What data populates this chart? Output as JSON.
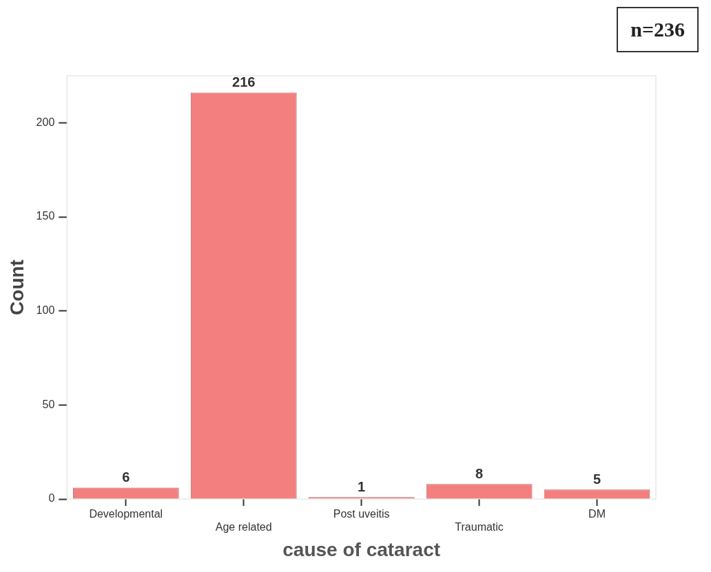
{
  "chart_data": {
    "type": "bar",
    "xlabel": "cause of cataract",
    "ylabel": "Count",
    "categories": [
      "Developmental",
      "Age related",
      "Post uveitis",
      "Traumatic",
      "DM"
    ],
    "values": [
      6,
      216,
      1,
      8,
      5
    ],
    "color": "#f47f7f",
    "data_labels": true,
    "ylim": [
      0,
      225
    ],
    "yticks": [
      0,
      50,
      100,
      150,
      200
    ],
    "grid": false,
    "legend": false,
    "annotations": [
      "n=236"
    ]
  }
}
